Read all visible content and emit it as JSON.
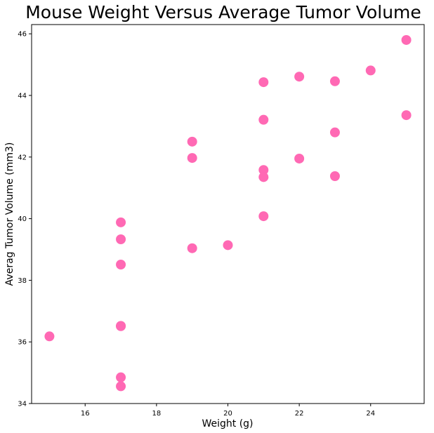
{
  "chart_data": {
    "type": "scatter",
    "title": "Mouse Weight Versus Average Tumor Volume",
    "xlabel": "Weight (g)",
    "ylabel": "Averag Tumor Volume (mm3)",
    "xlim": [
      14.5,
      25.5
    ],
    "ylim": [
      34,
      46.3
    ],
    "xticks": [
      16,
      18,
      20,
      22,
      24
    ],
    "yticks": [
      34,
      36,
      38,
      40,
      42,
      44,
      46
    ],
    "grid": false,
    "marker_color": "#ff69b4",
    "points": [
      {
        "x": 15,
        "y": 36.18
      },
      {
        "x": 17,
        "y": 39.88
      },
      {
        "x": 17,
        "y": 39.33
      },
      {
        "x": 17,
        "y": 38.51
      },
      {
        "x": 17,
        "y": 36.52
      },
      {
        "x": 17,
        "y": 36.51
      },
      {
        "x": 17,
        "y": 34.85
      },
      {
        "x": 17,
        "y": 34.56
      },
      {
        "x": 19,
        "y": 42.5
      },
      {
        "x": 19,
        "y": 41.97
      },
      {
        "x": 19,
        "y": 39.04
      },
      {
        "x": 20,
        "y": 39.14
      },
      {
        "x": 21,
        "y": 44.43
      },
      {
        "x": 21,
        "y": 43.21
      },
      {
        "x": 21,
        "y": 41.58
      },
      {
        "x": 21,
        "y": 41.35
      },
      {
        "x": 21,
        "y": 40.08
      },
      {
        "x": 22,
        "y": 44.61
      },
      {
        "x": 22,
        "y": 41.95
      },
      {
        "x": 23,
        "y": 44.46
      },
      {
        "x": 23,
        "y": 42.8
      },
      {
        "x": 23,
        "y": 41.38
      },
      {
        "x": 24,
        "y": 44.81
      },
      {
        "x": 25,
        "y": 45.8
      },
      {
        "x": 25,
        "y": 43.36
      }
    ]
  }
}
